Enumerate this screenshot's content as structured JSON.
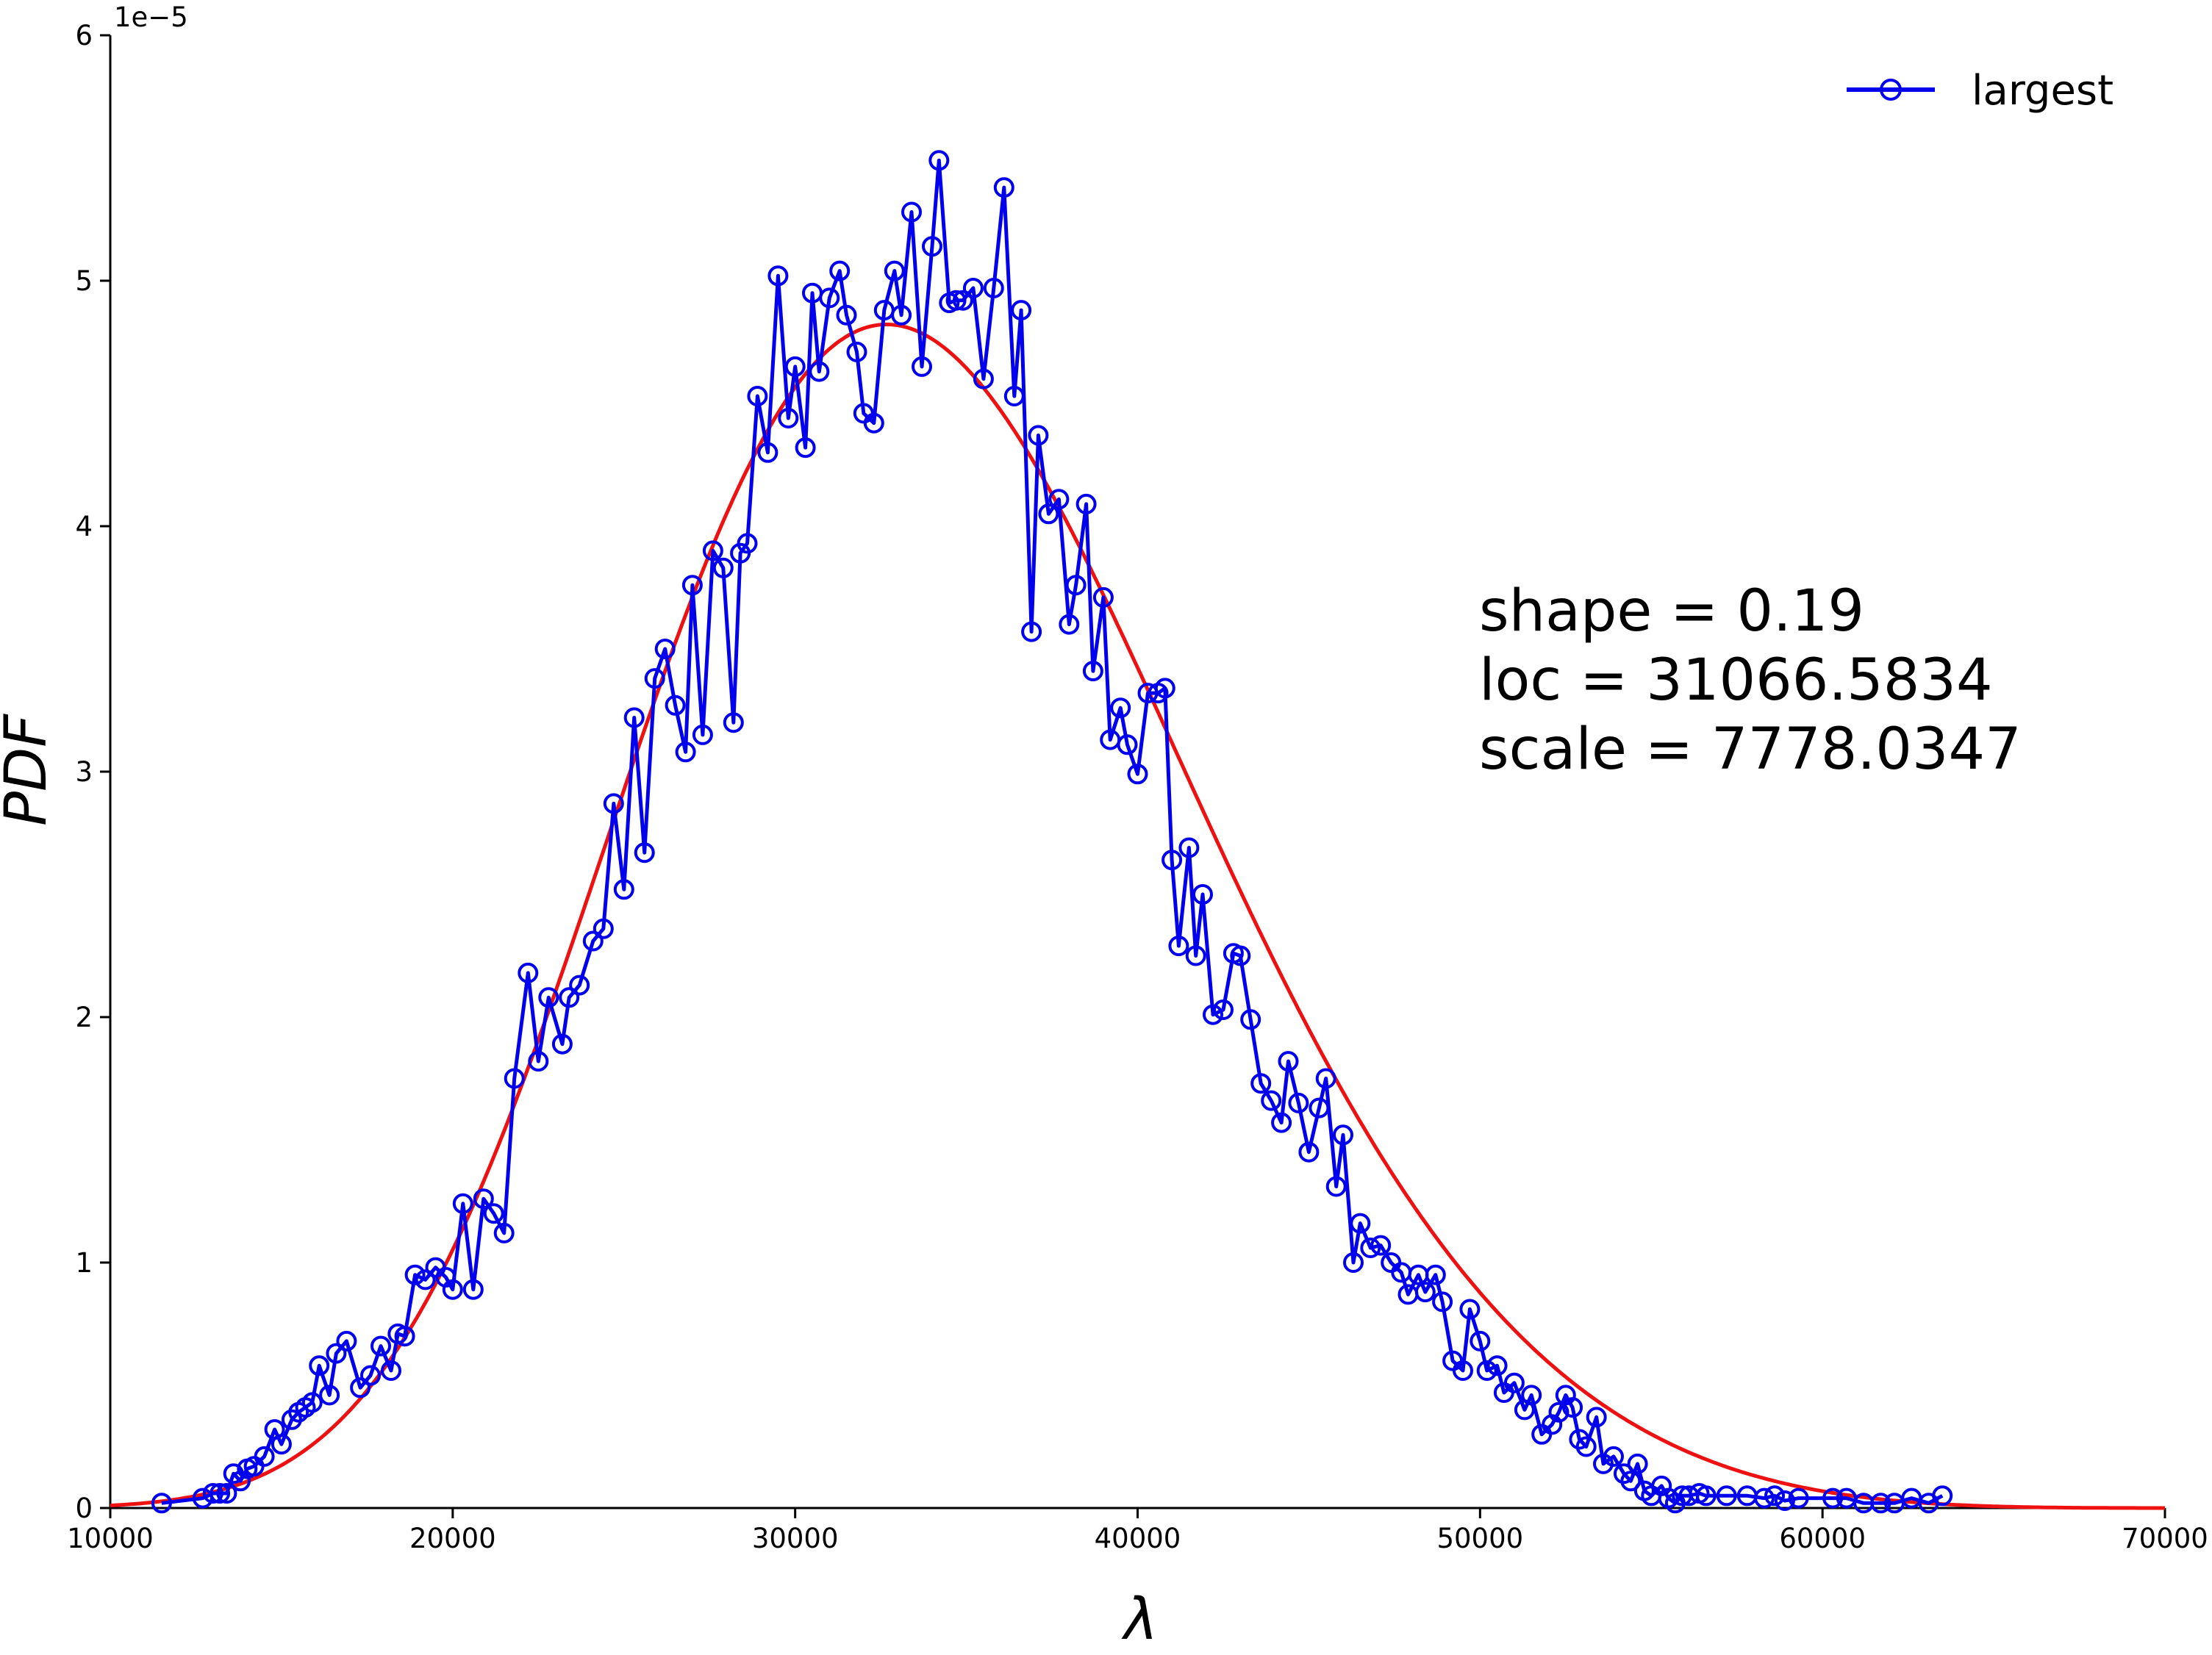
{
  "chart_data": {
    "type": "line",
    "title": "",
    "xlabel": "λ",
    "ylabel": "PDF",
    "y_offset_label": "1e−5",
    "xlim": [
      10000,
      70000
    ],
    "ylim": [
      0,
      6e-05
    ],
    "x_ticks": [
      10000,
      20000,
      30000,
      40000,
      50000,
      60000,
      70000
    ],
    "x_tick_labels": [
      "10000",
      "20000",
      "30000",
      "40000",
      "50000",
      "60000",
      "70000"
    ],
    "y_ticks": [
      0,
      1e-05,
      2e-05,
      3e-05,
      4e-05,
      5e-05,
      6e-05
    ],
    "y_tick_labels": [
      "0",
      "1",
      "2",
      "3",
      "4",
      "5",
      "6"
    ],
    "grid": false,
    "legend_position": "top-right",
    "legend": [
      {
        "label": "largest",
        "color": "#0000ee",
        "marker": "circle"
      }
    ],
    "annotations": [
      "shape = 0.19",
      "loc = 31066.5834",
      "scale = 7778.0347"
    ],
    "fit": {
      "name": "",
      "distribution": "genextreme",
      "shape": 0.19,
      "loc": 31066.5834,
      "scale": 7778.0347,
      "color": "#ee1111"
    },
    "series": [
      {
        "name": "largest",
        "color": "#0000ee",
        "points": [
          [
            11500,
            2e-07
          ],
          [
            12700,
            4e-07
          ],
          [
            13000,
            6e-07
          ],
          [
            13200,
            6e-07
          ],
          [
            13400,
            6e-07
          ],
          [
            13600,
            1.4e-06
          ],
          [
            13800,
            1.1e-06
          ],
          [
            14000,
            1.6e-06
          ],
          [
            14200,
            1.7e-06
          ],
          [
            14500,
            2.1e-06
          ],
          [
            14800,
            3.2e-06
          ],
          [
            15000,
            2.6e-06
          ],
          [
            15300,
            3.6e-06
          ],
          [
            15500,
            3.9e-06
          ],
          [
            15700,
            4.1e-06
          ],
          [
            15900,
            4.3e-06
          ],
          [
            16100,
            5.8e-06
          ],
          [
            16400,
            4.6e-06
          ],
          [
            16600,
            6.3e-06
          ],
          [
            16900,
            6.8e-06
          ],
          [
            17300,
            4.9e-06
          ],
          [
            17600,
            5.4e-06
          ],
          [
            17900,
            6.6e-06
          ],
          [
            18200,
            5.6e-06
          ],
          [
            18400,
            7.1e-06
          ],
          [
            18600,
            7e-06
          ],
          [
            18900,
            9.5e-06
          ],
          [
            19200,
            9.3e-06
          ],
          [
            19500,
            9.8e-06
          ],
          [
            19800,
            9.4e-06
          ],
          [
            20000,
            8.9e-06
          ],
          [
            20300,
            1.24e-05
          ],
          [
            20600,
            8.9e-06
          ],
          [
            20900,
            1.26e-05
          ],
          [
            21200,
            1.2e-05
          ],
          [
            21500,
            1.12e-05
          ],
          [
            21800,
            1.75e-05
          ],
          [
            22200,
            2.18e-05
          ],
          [
            22500,
            1.82e-05
          ],
          [
            22800,
            2.08e-05
          ],
          [
            23200,
            1.89e-05
          ],
          [
            23400,
            2.08e-05
          ],
          [
            23700,
            2.13e-05
          ],
          [
            24100,
            2.31e-05
          ],
          [
            24400,
            2.36e-05
          ],
          [
            24700,
            2.87e-05
          ],
          [
            25000,
            2.52e-05
          ],
          [
            25300,
            3.22e-05
          ],
          [
            25600,
            2.67e-05
          ],
          [
            25900,
            3.38e-05
          ],
          [
            26200,
            3.5e-05
          ],
          [
            26500,
            3.27e-05
          ],
          [
            26800,
            3.08e-05
          ],
          [
            27000,
            3.76e-05
          ],
          [
            27300,
            3.15e-05
          ],
          [
            27600,
            3.9e-05
          ],
          [
            27900,
            3.83e-05
          ],
          [
            28200,
            3.2e-05
          ],
          [
            28400,
            3.89e-05
          ],
          [
            28600,
            3.93e-05
          ],
          [
            28900,
            4.53e-05
          ],
          [
            29200,
            4.3e-05
          ],
          [
            29500,
            5.02e-05
          ],
          [
            29800,
            4.44e-05
          ],
          [
            30000,
            4.65e-05
          ],
          [
            30300,
            4.32e-05
          ],
          [
            30500,
            4.95e-05
          ],
          [
            30700,
            4.63e-05
          ],
          [
            31000,
            4.93e-05
          ],
          [
            31300,
            5.04e-05
          ],
          [
            31500,
            4.86e-05
          ],
          [
            31800,
            4.71e-05
          ],
          [
            32000,
            4.46e-05
          ],
          [
            32300,
            4.42e-05
          ],
          [
            32600,
            4.88e-05
          ],
          [
            32900,
            5.04e-05
          ],
          [
            33100,
            4.86e-05
          ],
          [
            33400,
            5.28e-05
          ],
          [
            33700,
            4.65e-05
          ],
          [
            34000,
            5.14e-05
          ],
          [
            34200,
            5.49e-05
          ],
          [
            34500,
            4.91e-05
          ],
          [
            34700,
            4.92e-05
          ],
          [
            34900,
            4.92e-05
          ],
          [
            35200,
            4.97e-05
          ],
          [
            35500,
            4.6e-05
          ],
          [
            35800,
            4.97e-05
          ],
          [
            36100,
            5.38e-05
          ],
          [
            36400,
            4.53e-05
          ],
          [
            36600,
            4.88e-05
          ],
          [
            36900,
            3.57e-05
          ],
          [
            37100,
            4.37e-05
          ],
          [
            37400,
            4.05e-05
          ],
          [
            37700,
            4.11e-05
          ],
          [
            38000,
            3.6e-05
          ],
          [
            38200,
            3.76e-05
          ],
          [
            38500,
            4.09e-05
          ],
          [
            38700,
            3.41e-05
          ],
          [
            39000,
            3.71e-05
          ],
          [
            39200,
            3.13e-05
          ],
          [
            39500,
            3.26e-05
          ],
          [
            39700,
            3.11e-05
          ],
          [
            40000,
            2.99e-05
          ],
          [
            40300,
            3.32e-05
          ],
          [
            40600,
            3.32e-05
          ],
          [
            40800,
            3.34e-05
          ],
          [
            41000,
            2.64e-05
          ],
          [
            41200,
            2.29e-05
          ],
          [
            41500,
            2.69e-05
          ],
          [
            41700,
            2.25e-05
          ],
          [
            41900,
            2.5e-05
          ],
          [
            42200,
            2.01e-05
          ],
          [
            42500,
            2.03e-05
          ],
          [
            42800,
            2.26e-05
          ],
          [
            43000,
            2.25e-05
          ],
          [
            43300,
            1.99e-05
          ],
          [
            43600,
            1.73e-05
          ],
          [
            43900,
            1.66e-05
          ],
          [
            44200,
            1.57e-05
          ],
          [
            44400,
            1.82e-05
          ],
          [
            44700,
            1.65e-05
          ],
          [
            45000,
            1.45e-05
          ],
          [
            45300,
            1.63e-05
          ],
          [
            45500,
            1.75e-05
          ],
          [
            45800,
            1.31e-05
          ],
          [
            46000,
            1.52e-05
          ],
          [
            46300,
            1e-05
          ],
          [
            46500,
            1.16e-05
          ],
          [
            46800,
            1.06e-05
          ],
          [
            47100,
            1.07e-05
          ],
          [
            47400,
            1e-05
          ],
          [
            47700,
            9.6e-06
          ],
          [
            47900,
            8.7e-06
          ],
          [
            48200,
            9.5e-06
          ],
          [
            48400,
            8.8e-06
          ],
          [
            48700,
            9.5e-06
          ],
          [
            48900,
            8.4e-06
          ],
          [
            49200,
            6e-06
          ],
          [
            49500,
            5.6e-06
          ],
          [
            49700,
            8.1e-06
          ],
          [
            50000,
            6.8e-06
          ],
          [
            50200,
            5.6e-06
          ],
          [
            50500,
            5.8e-06
          ],
          [
            50700,
            4.7e-06
          ],
          [
            51000,
            5.1e-06
          ],
          [
            51300,
            4e-06
          ],
          [
            51500,
            4.6e-06
          ],
          [
            51800,
            3e-06
          ],
          [
            52100,
            3.4e-06
          ],
          [
            52300,
            3.9e-06
          ],
          [
            52500,
            4.6e-06
          ],
          [
            52700,
            4.1e-06
          ],
          [
            52900,
            2.8e-06
          ],
          [
            53100,
            2.5e-06
          ],
          [
            53400,
            3.7e-06
          ],
          [
            53600,
            1.8e-06
          ],
          [
            53900,
            2.1e-06
          ],
          [
            54200,
            1.4e-06
          ],
          [
            54400,
            1.1e-06
          ],
          [
            54600,
            1.8e-06
          ],
          [
            54800,
            7e-07
          ],
          [
            55000,
            5e-07
          ],
          [
            55300,
            9e-07
          ],
          [
            55500,
            4e-07
          ],
          [
            55700,
            2e-07
          ],
          [
            55900,
            5e-07
          ],
          [
            56100,
            5e-07
          ],
          [
            56400,
            6e-07
          ],
          [
            56600,
            5e-07
          ],
          [
            57200,
            5e-07
          ],
          [
            57800,
            5e-07
          ],
          [
            58300,
            4e-07
          ],
          [
            58600,
            5e-07
          ],
          [
            58900,
            3e-07
          ],
          [
            59300,
            4e-07
          ],
          [
            60300,
            4e-07
          ],
          [
            60700,
            4e-07
          ],
          [
            61200,
            2e-07
          ],
          [
            61700,
            2e-07
          ],
          [
            62100,
            2e-07
          ],
          [
            62600,
            4e-07
          ],
          [
            63100,
            2e-07
          ],
          [
            63500,
            5e-07
          ]
        ]
      }
    ]
  }
}
